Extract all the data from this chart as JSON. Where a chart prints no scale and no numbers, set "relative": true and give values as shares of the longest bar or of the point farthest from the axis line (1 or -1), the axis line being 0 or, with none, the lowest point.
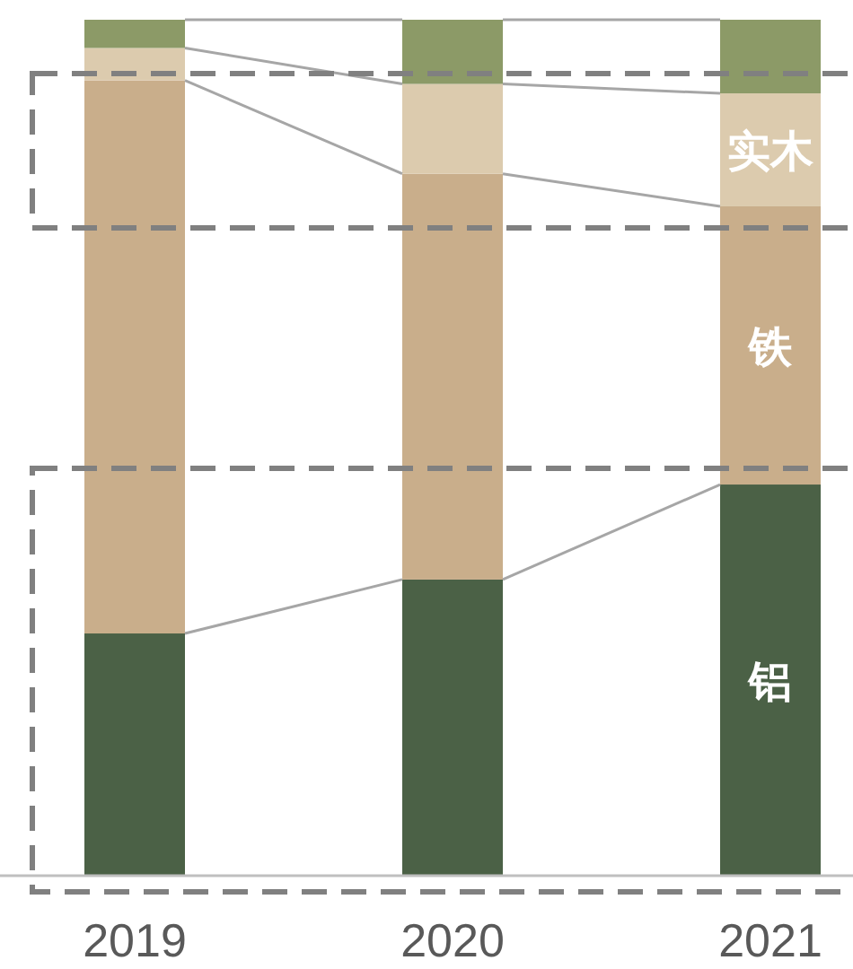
{
  "chart_data": {
    "type": "bar",
    "stacked": true,
    "relative": true,
    "grid": false,
    "categories": [
      "2019",
      "2020",
      "2021"
    ],
    "series": [
      {
        "name": "铝",
        "color": "#4b6146",
        "values": [
          0.283,
          0.346,
          0.457
        ]
      },
      {
        "name": "铁",
        "color": "#c9ae8b",
        "values": [
          0.646,
          0.474,
          0.325
        ]
      },
      {
        "name": "实木",
        "color": "#dccbae",
        "values": [
          0.038,
          0.105,
          0.132
        ]
      },
      {
        "color": "#8c9a67",
        "values": [
          0.033,
          0.075,
          0.086
        ]
      }
    ]
  }
}
